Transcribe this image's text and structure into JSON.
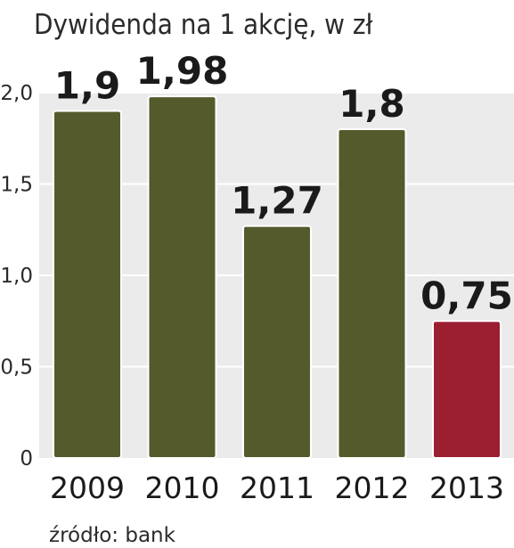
{
  "chart_data": {
    "type": "bar",
    "title": "Dywidenda na 1 akcję, w zł",
    "categories": [
      "2009",
      "2010",
      "2011",
      "2012",
      "2013"
    ],
    "values": [
      1.9,
      1.98,
      1.27,
      1.8,
      0.75
    ],
    "value_labels": [
      "1,9",
      "1,98",
      "1,27",
      "1,8",
      "0,75"
    ],
    "ylim": [
      0,
      2.0
    ],
    "yticks": [
      0,
      0.5,
      1.0,
      1.5,
      2.0
    ],
    "ytick_labels": [
      "0",
      "0,5",
      "1,0",
      "1,5",
      "2,0"
    ],
    "grid": true,
    "colors": [
      "#545a2b",
      "#545a2b",
      "#545a2b",
      "#545a2b",
      "#9b1f31"
    ],
    "source": "źródło: bank"
  }
}
